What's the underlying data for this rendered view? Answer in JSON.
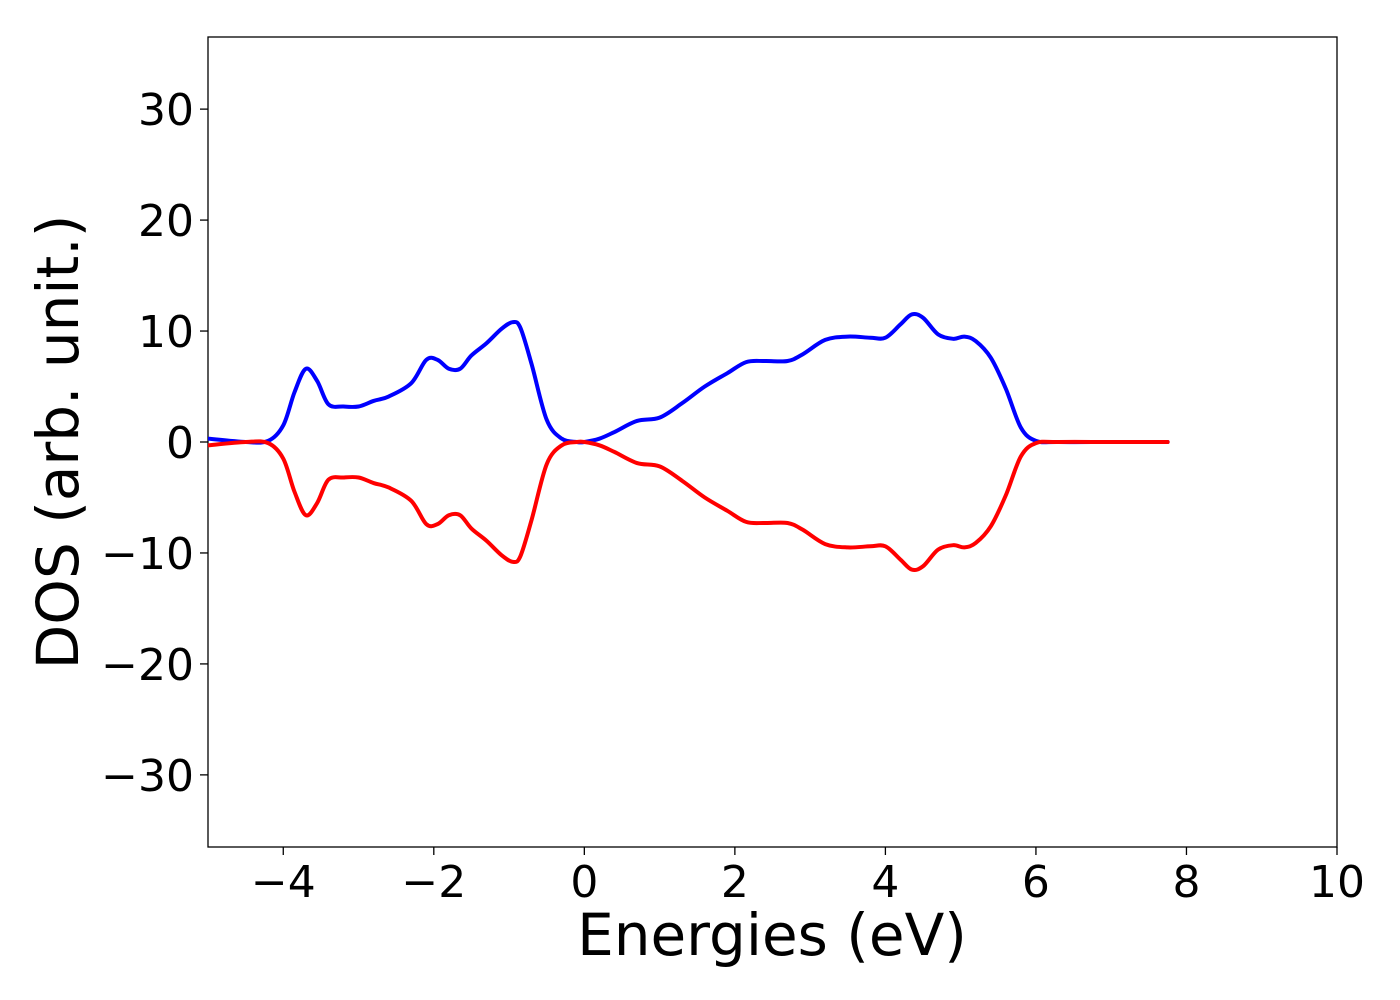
{
  "chart_data": {
    "type": "line",
    "title": "",
    "xlabel": "Energies (eV)",
    "ylabel": "DOS (arb. unit.)",
    "xlim": [
      -5,
      10
    ],
    "ylim": [
      -36.5,
      36.5
    ],
    "xticks": [
      {
        "value": -4,
        "label": "−4"
      },
      {
        "value": -2,
        "label": "−2"
      },
      {
        "value": 0,
        "label": "0"
      },
      {
        "value": 2,
        "label": "2"
      },
      {
        "value": 4,
        "label": "4"
      },
      {
        "value": 6,
        "label": "6"
      },
      {
        "value": 8,
        "label": "8"
      },
      {
        "value": 10,
        "label": "10"
      }
    ],
    "yticks": [
      {
        "value": -30,
        "label": "−30"
      },
      {
        "value": -20,
        "label": "−20"
      },
      {
        "value": -10,
        "label": "−10"
      },
      {
        "value": 0,
        "label": "0"
      },
      {
        "value": 10,
        "label": "10"
      },
      {
        "value": 20,
        "label": "20"
      },
      {
        "value": 30,
        "label": "30"
      }
    ],
    "grid": false,
    "legend": "none",
    "x": [
      -5.0,
      -4.5,
      -4.2,
      -4.0,
      -3.85,
      -3.7,
      -3.55,
      -3.4,
      -3.2,
      -3.0,
      -2.8,
      -2.6,
      -2.3,
      -2.1,
      -1.95,
      -1.8,
      -1.65,
      -1.5,
      -1.3,
      -1.1,
      -0.95,
      -0.85,
      -0.7,
      -0.5,
      -0.3,
      -0.1,
      0.0,
      0.2,
      0.4,
      0.7,
      1.0,
      1.3,
      1.6,
      1.9,
      2.15,
      2.4,
      2.7,
      2.9,
      3.2,
      3.5,
      3.8,
      4.0,
      4.2,
      4.35,
      4.5,
      4.7,
      4.9,
      5.05,
      5.2,
      5.4,
      5.6,
      5.8,
      6.0,
      6.3,
      7.0,
      7.75
    ],
    "series": [
      {
        "color": "#0000ff",
        "values": [
          0.3,
          0.0,
          0.1,
          1.5,
          4.5,
          6.6,
          5.5,
          3.4,
          3.2,
          3.2,
          3.7,
          4.1,
          5.3,
          7.4,
          7.4,
          6.6,
          6.6,
          7.8,
          8.9,
          10.2,
          10.8,
          10.3,
          7.0,
          2.0,
          0.3,
          0.0,
          0.0,
          0.3,
          0.9,
          1.9,
          2.2,
          3.5,
          5.0,
          6.2,
          7.2,
          7.3,
          7.3,
          7.9,
          9.2,
          9.5,
          9.4,
          9.4,
          10.6,
          11.5,
          11.2,
          9.7,
          9.3,
          9.5,
          9.1,
          7.6,
          4.8,
          1.3,
          0.1,
          0.0,
          0.0,
          0.0
        ]
      },
      {
        "color": "#ff0000",
        "values": [
          -0.3,
          0.0,
          -0.1,
          -1.5,
          -4.5,
          -6.6,
          -5.5,
          -3.4,
          -3.2,
          -3.2,
          -3.7,
          -4.1,
          -5.3,
          -7.4,
          -7.4,
          -6.6,
          -6.6,
          -7.8,
          -8.9,
          -10.2,
          -10.8,
          -10.3,
          -7.0,
          -2.0,
          -0.3,
          0.0,
          0.0,
          -0.3,
          -0.9,
          -1.9,
          -2.2,
          -3.5,
          -5.0,
          -6.2,
          -7.2,
          -7.3,
          -7.3,
          -7.9,
          -9.2,
          -9.5,
          -9.4,
          -9.4,
          -10.6,
          -11.5,
          -11.2,
          -9.7,
          -9.3,
          -9.5,
          -9.1,
          -7.6,
          -4.8,
          -1.3,
          -0.1,
          0.0,
          0.0,
          0.0
        ]
      }
    ]
  }
}
